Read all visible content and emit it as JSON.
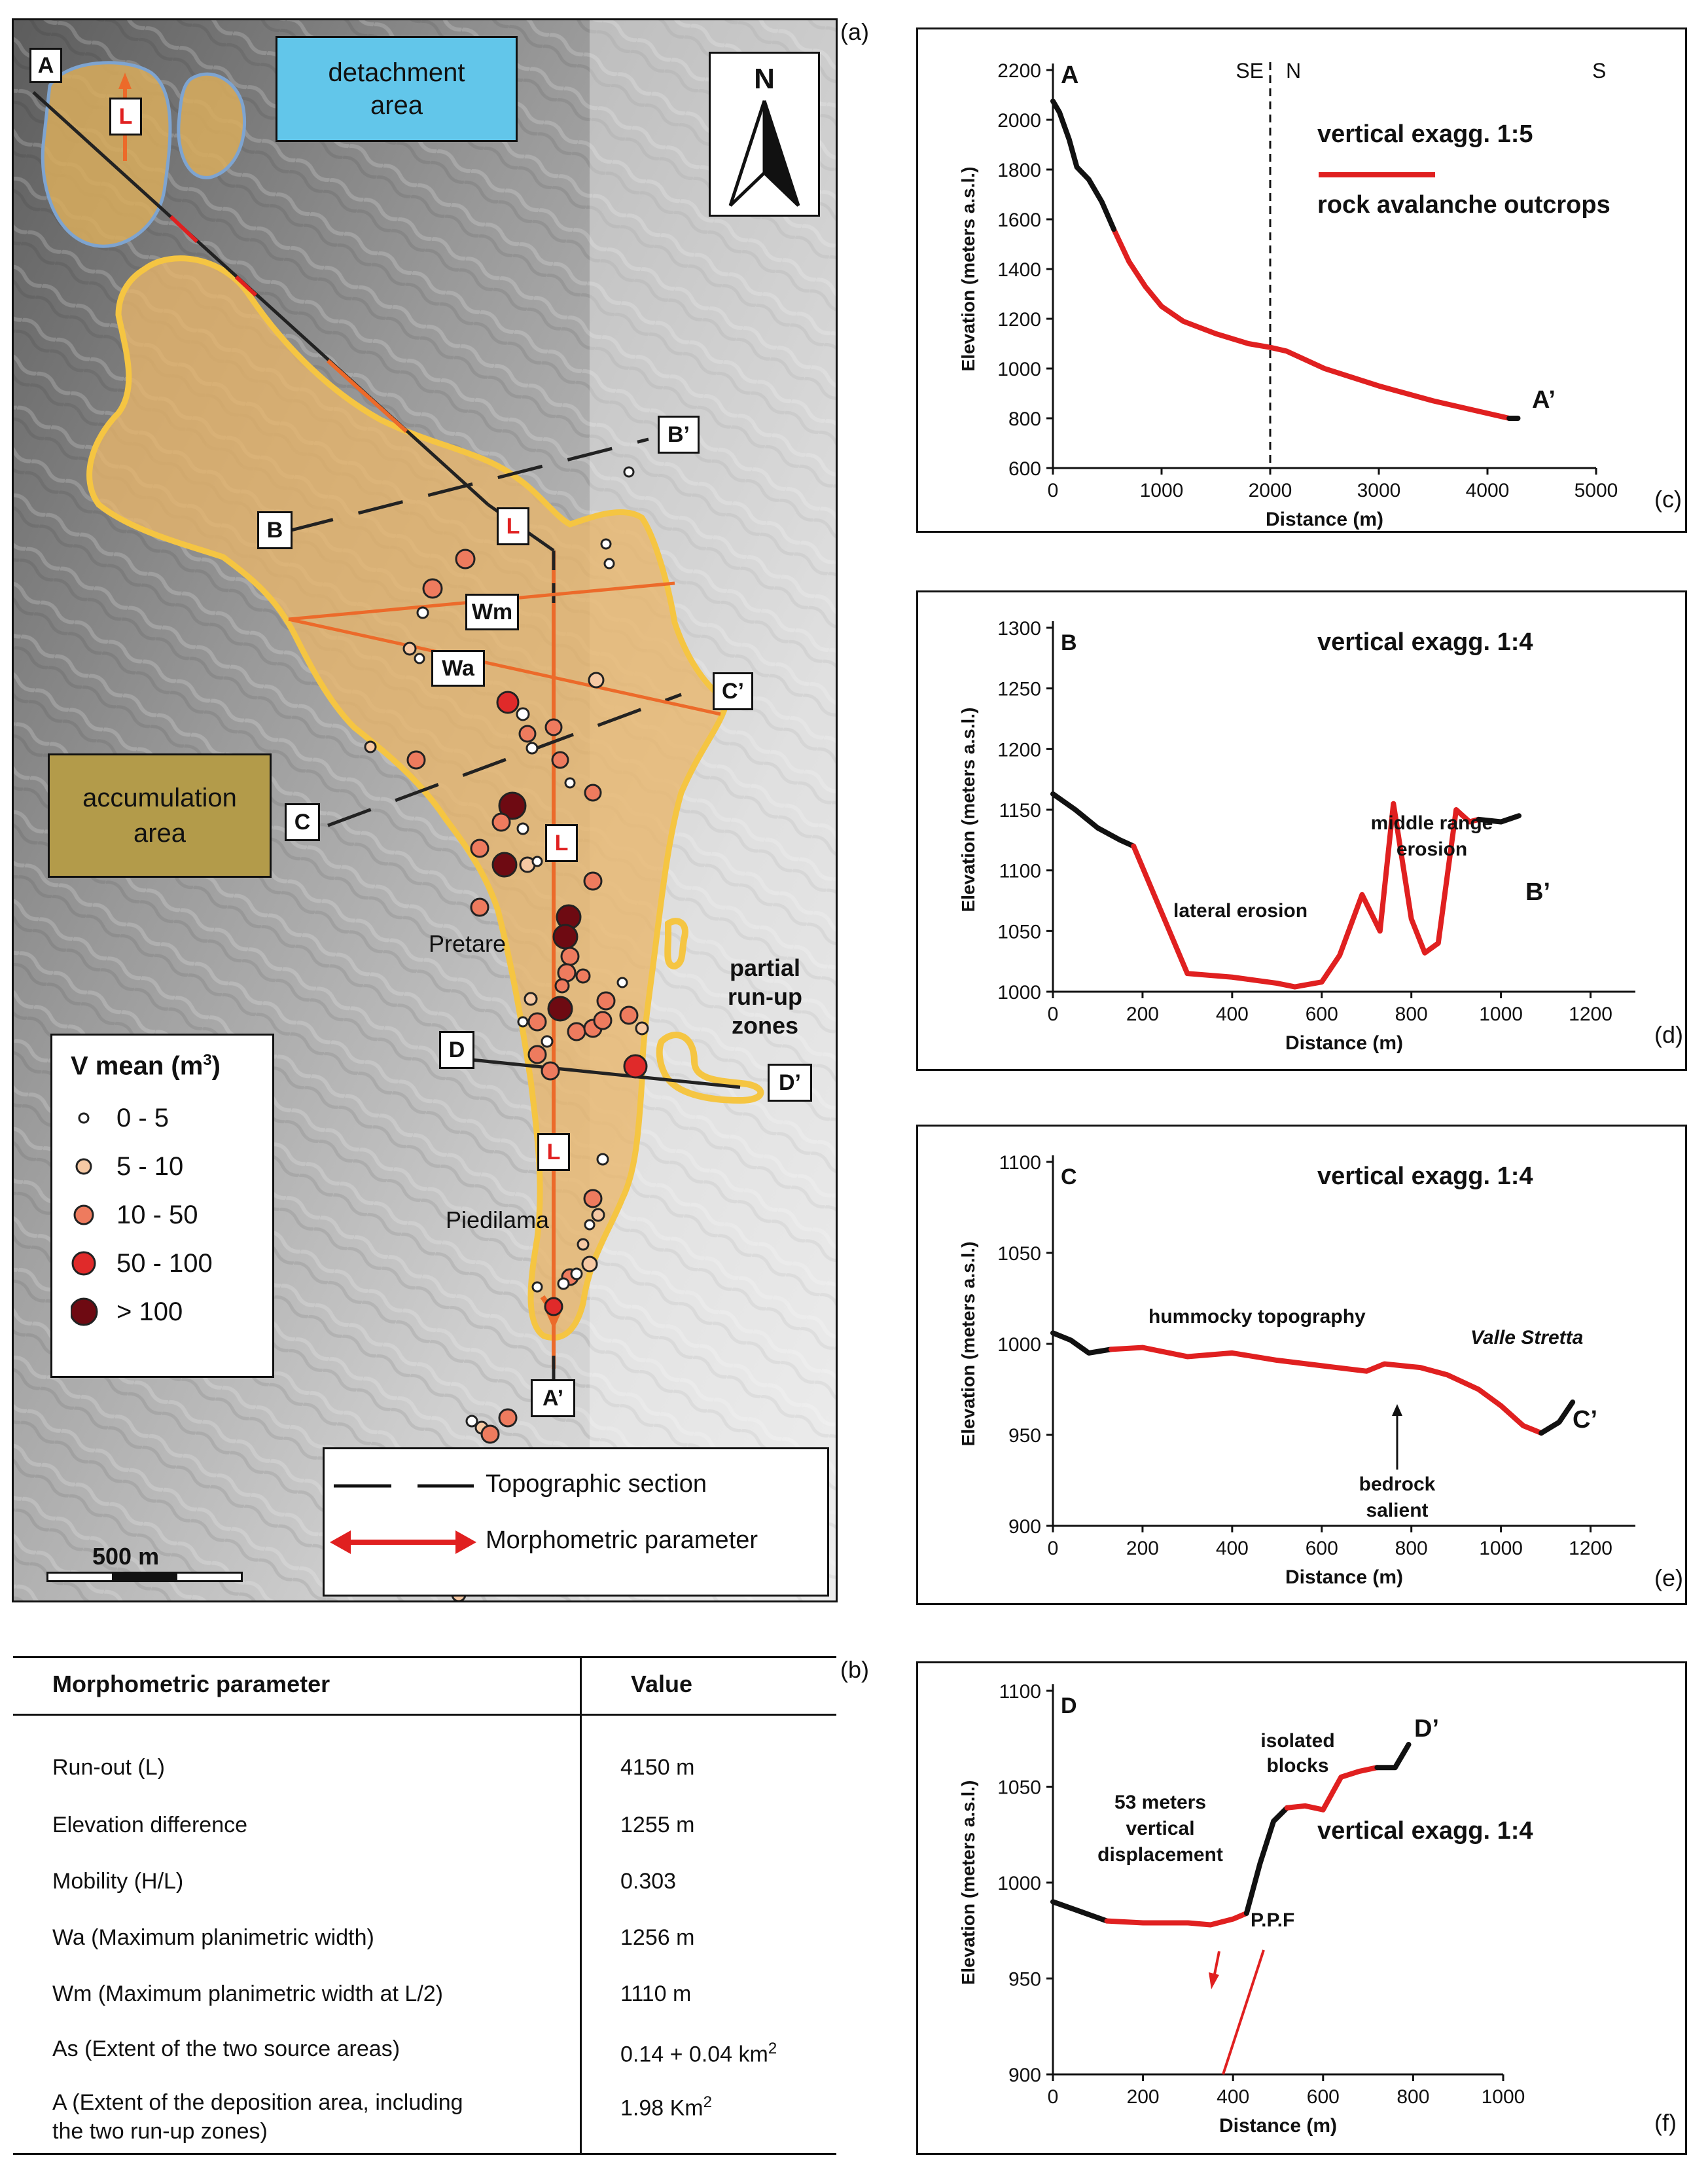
{
  "panels": {
    "a": "(a)",
    "b": "(b)",
    "c": "(c)",
    "d": "(d)",
    "e": "(e)",
    "f": "(f)"
  },
  "map": {
    "detachment_label": [
      "detachment",
      "area"
    ],
    "accumulation_label": [
      "accumulation",
      "area"
    ],
    "north": "N",
    "partial_runup": [
      "partial",
      "run-up zones"
    ],
    "villages": [
      "Pretare",
      "Piedilama"
    ],
    "section_letters": [
      "A",
      "A’",
      "B",
      "B’",
      "C",
      "C’",
      "D",
      "D’"
    ],
    "run_out_marker": "L",
    "widths": [
      "Wm",
      "Wa"
    ],
    "scale_bar": "500 m",
    "legend_title": "V mean (m",
    "legend_title_sup": "3",
    "legend_title_end": ")",
    "legend_items": [
      "0 - 5",
      "5 - 10",
      "10 - 50",
      "50 - 100",
      "> 100"
    ],
    "legend_colors": [
      "#ffffff",
      "#f6c9a4",
      "#ee7b5e",
      "#e02a2a",
      "#6e0a12"
    ],
    "key_items": [
      "Topographic section",
      "Morphometric parameter"
    ],
    "colors": {
      "deposit": "#e9b66a",
      "outline": "#f5c542",
      "detach_box": "#62c6ea",
      "accum_box": "#b39b4a",
      "section_orange": "#ec6a2a",
      "red": "#e02020"
    }
  },
  "table": {
    "headers": [
      "Morphometric parameter",
      "Value"
    ],
    "rows": [
      {
        "param": "Run-out (L)",
        "value": "4150 m"
      },
      {
        "param": "Elevation difference",
        "value": "1255 m"
      },
      {
        "param": "Mobility (H/L)",
        "value": "0.303"
      },
      {
        "param": "Wa (Maximum planimetric width)",
        "value": "1256 m"
      },
      {
        "param": "Wm (Maximum planimetric width at L/2)",
        "value": "1110 m"
      },
      {
        "param": "As (Extent of the two source areas)",
        "value": "0.14 + 0.04 km",
        "value_sup": "2"
      },
      {
        "param": "A (Extent of the deposition area, including",
        "param2": "the two run-up zones)",
        "value": "1.98 Km",
        "value_sup": "2"
      }
    ]
  },
  "profile_c": {
    "start_label": "A",
    "end_label": "A’",
    "direction_labels": [
      "SE",
      "N",
      "S"
    ],
    "exaggeration": "vertical exagg. 1:5",
    "legend": "rock avalanche outcrops",
    "ylabel": "Elevation (meters a.s.l.)",
    "xlabel": "Distance (m)"
  },
  "profile_d": {
    "start_label": "B",
    "end_label": "B’",
    "exaggeration": "vertical exagg. 1:4",
    "annotations": [
      "middle range",
      "erosion",
      "lateral erosion"
    ],
    "ylabel": "Elevation (meters a.s.l.)",
    "xlabel": "Distance (m)"
  },
  "profile_e": {
    "start_label": "C",
    "end_label": "C’",
    "exaggeration": "vertical exagg. 1:4",
    "annotations": [
      "hummocky topography",
      "Valle Stretta",
      "bedrock",
      "salient"
    ],
    "ylabel": "Elevation (meters a.s.l.)",
    "xlabel": "Distance (m)"
  },
  "profile_f": {
    "start_label": "D",
    "end_label": "D’",
    "exaggeration": "vertical exagg. 1:4",
    "annotations": [
      "isolated",
      "blocks",
      "53 meters",
      "vertical",
      "displacement",
      "P.P.F"
    ],
    "ylabel": "Elevation (meters a.s.l.)",
    "xlabel": "Distance (m)"
  },
  "chart_data": [
    {
      "type": "line",
      "panel": "c",
      "xlabel": "Distance (m)",
      "ylabel": "Elevation (meters a.s.l.)",
      "xlim": [
        0,
        5000
      ],
      "ylim": [
        600,
        2200
      ],
      "xticks": [
        0,
        1000,
        2000,
        3000,
        4000,
        5000
      ],
      "yticks": [
        600,
        800,
        1000,
        1200,
        1400,
        1600,
        1800,
        2000,
        2200
      ],
      "divider_x": 2000,
      "series": [
        {
          "name": "rock avalanche outcrops",
          "color": "#e02020",
          "x": [
            560,
            700,
            850,
            1000,
            1200,
            1500,
            1800,
            2000,
            2150,
            2500,
            3000,
            3500,
            3900,
            4100,
            4200
          ],
          "y": [
            1560,
            1430,
            1330,
            1250,
            1190,
            1140,
            1100,
            1085,
            1070,
            1000,
            930,
            870,
            830,
            810,
            800
          ]
        },
        {
          "name": "",
          "color": "#111111",
          "x": [
            0,
            60,
            150,
            220,
            330,
            450,
            560
          ],
          "y": [
            2075,
            2030,
            1920,
            1810,
            1760,
            1670,
            1560
          ]
        },
        {
          "name": "",
          "color": "#111111",
          "x": [
            4200,
            4280
          ],
          "y": [
            800,
            800
          ]
        }
      ]
    },
    {
      "type": "line",
      "panel": "d",
      "xlabel": "Distance (m)",
      "ylabel": "Elevation (meters a.s.l.)",
      "xlim": [
        0,
        1300
      ],
      "ylim": [
        1000,
        1300
      ],
      "xticks": [
        0,
        200,
        400,
        600,
        800,
        1000,
        1200
      ],
      "yticks": [
        1000,
        1050,
        1100,
        1150,
        1200,
        1250,
        1300
      ],
      "series": [
        {
          "name": "",
          "color": "#111111",
          "x": [
            0,
            50,
            100,
            150,
            180
          ],
          "y": [
            1163,
            1150,
            1135,
            1125,
            1120
          ]
        },
        {
          "name": "",
          "color": "#e02020",
          "x": [
            180,
            300,
            400,
            500,
            540,
            600,
            640,
            690,
            730,
            760,
            800,
            830,
            860,
            900,
            930,
            950
          ],
          "y": [
            1120,
            1015,
            1012,
            1007,
            1004,
            1008,
            1030,
            1080,
            1050,
            1155,
            1060,
            1032,
            1040,
            1150,
            1140,
            1142
          ]
        },
        {
          "name": "",
          "color": "#111111",
          "x": [
            950,
            1000,
            1040
          ],
          "y": [
            1142,
            1140,
            1145
          ]
        }
      ]
    },
    {
      "type": "line",
      "panel": "e",
      "xlabel": "Distance (m)",
      "ylabel": "Elevation (meters a.s.l.)",
      "xlim": [
        0,
        1300
      ],
      "ylim": [
        900,
        1100
      ],
      "xticks": [
        0,
        200,
        400,
        600,
        800,
        1000,
        1200
      ],
      "yticks": [
        900,
        950,
        1000,
        1050,
        1100
      ],
      "series": [
        {
          "name": "",
          "color": "#111111",
          "x": [
            0,
            40,
            80,
            130
          ],
          "y": [
            1006,
            1002,
            995,
            997
          ]
        },
        {
          "name": "",
          "color": "#e02020",
          "x": [
            130,
            200,
            300,
            400,
            500,
            600,
            700,
            740,
            780,
            820,
            880,
            950,
            1000,
            1050,
            1090
          ],
          "y": [
            997,
            998,
            993,
            995,
            991,
            988,
            985,
            989,
            988,
            987,
            983,
            975,
            966,
            955,
            951
          ]
        },
        {
          "name": "",
          "color": "#111111",
          "x": [
            1090,
            1130,
            1160
          ],
          "y": [
            951,
            957,
            968
          ]
        }
      ]
    },
    {
      "type": "line",
      "panel": "f",
      "xlabel": "Distance (m)",
      "ylabel": "Elevation (meters a.s.l.)",
      "xlim": [
        0,
        1000
      ],
      "ylim": [
        900,
        1100
      ],
      "xticks": [
        0,
        200,
        400,
        600,
        800,
        1000
      ],
      "yticks": [
        900,
        950,
        1000,
        1050,
        1100
      ],
      "series": [
        {
          "name": "",
          "color": "#111111",
          "x": [
            0,
            60,
            120
          ],
          "y": [
            990,
            985,
            980
          ]
        },
        {
          "name": "",
          "color": "#e02020",
          "x": [
            120,
            200,
            300,
            350,
            400,
            430
          ],
          "y": [
            980,
            979,
            979,
            978,
            981,
            984
          ]
        },
        {
          "name": "",
          "color": "#111111",
          "x": [
            430,
            460,
            490,
            520
          ],
          "y": [
            984,
            1010,
            1032,
            1039
          ]
        },
        {
          "name": "",
          "color": "#e02020",
          "x": [
            520,
            560,
            600,
            640,
            680,
            720
          ],
          "y": [
            1039,
            1040,
            1038,
            1055,
            1058,
            1060
          ]
        },
        {
          "name": "",
          "color": "#111111",
          "x": [
            720,
            760,
            790
          ],
          "y": [
            1060,
            1060,
            1072
          ]
        }
      ]
    }
  ]
}
